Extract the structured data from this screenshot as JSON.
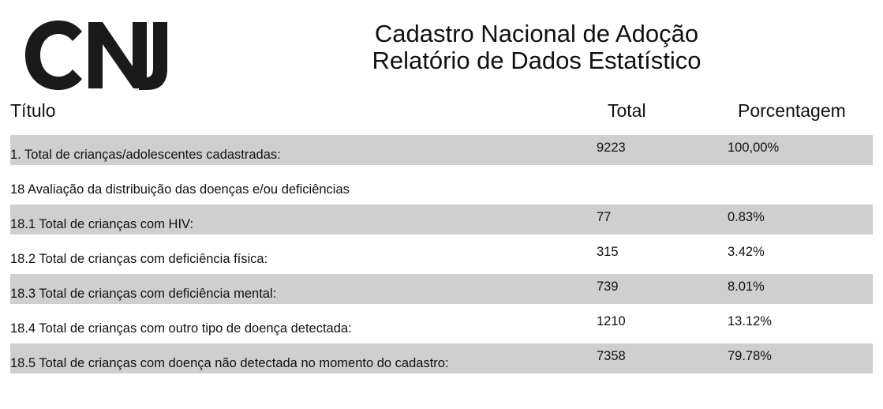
{
  "logo": {
    "text": "CNJ",
    "color": "#1a1a1a"
  },
  "header": {
    "title_line1": "Cadastro Nacional de Adoção",
    "title_line2": "Relatório de Dados Estatístico"
  },
  "table": {
    "columns": {
      "title": "Título",
      "total": "Total",
      "percentage": "Porcentagem"
    },
    "rows": [
      {
        "label": "1. Total de crianças/adolescentes cadastradas:",
        "total": "9223",
        "percentage": "100,00%",
        "shaded": true
      },
      {
        "label": "18 Avaliação da distribuição das doenças e/ou deficiências",
        "total": "",
        "percentage": "",
        "shaded": false
      },
      {
        "label": "18.1 Total de crianças com HIV:",
        "total": "77",
        "percentage": "0.83%",
        "shaded": true
      },
      {
        "label": "18.2 Total de crianças com deficiência física:",
        "total": "315",
        "percentage": "3.42%",
        "shaded": false
      },
      {
        "label": "18.3 Total de crianças com deficiência mental:",
        "total": "739",
        "percentage": "8.01%",
        "shaded": true
      },
      {
        "label": "18.4 Total de crianças com outro tipo de doença detectada:",
        "total": "1210",
        "percentage": "13.12%",
        "shaded": false
      },
      {
        "label": "18.5 Total de crianças com doença não detectada no momento do cadastro:",
        "total": "7358",
        "percentage": "79.78%",
        "shaded": true
      }
    ]
  }
}
